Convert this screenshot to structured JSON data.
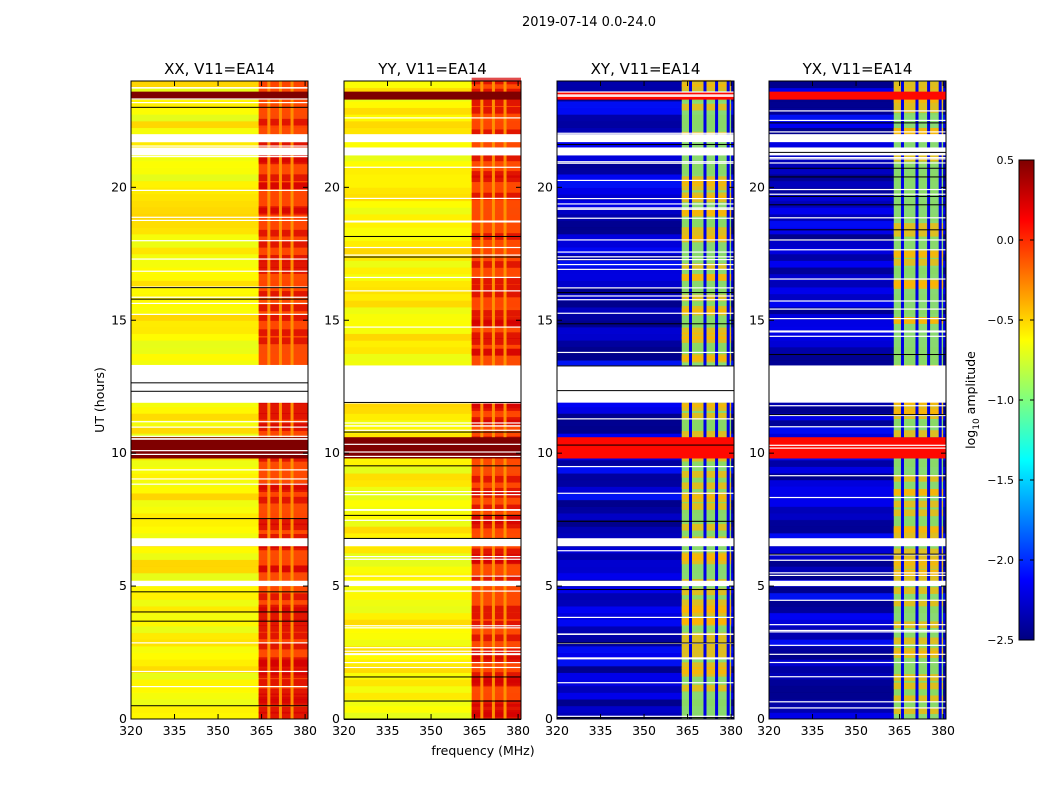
{
  "figure": {
    "suptitle": "2019-07-14 0.0-24.0"
  },
  "chart_data": {
    "type": "heatmap",
    "xlabel": "frequency (MHz)",
    "ylabel": "UT (hours)",
    "xlim": [
      320,
      381
    ],
    "ylim": [
      0,
      24
    ],
    "xticks": [
      320,
      335,
      350,
      365,
      380
    ],
    "xtick_labels": [
      "320",
      "335",
      "350",
      "365",
      "380"
    ],
    "yticks": [
      0,
      5,
      10,
      15,
      20
    ],
    "yticks_labels": [
      "0",
      "5",
      "10",
      "15",
      "20"
    ],
    "colorbar": {
      "label_main": "log",
      "label_sub": "10",
      "label_rest": " amplitude",
      "range": [
        -2.5,
        0.5
      ],
      "ticks": [
        0.5,
        0.0,
        -0.5,
        -1.0,
        -1.5,
        -2.0,
        -2.5
      ],
      "tick_labels": [
        "0.5",
        "0.0",
        "−0.5",
        "−1.0",
        "−1.5",
        "−2.0",
        "−2.5"
      ],
      "colormap": [
        "#00007f",
        "#0000ff",
        "#007fff",
        "#00ffff",
        "#7fff7f",
        "#ffff00",
        "#ff7f00",
        "#ff0000",
        "#7f0000"
      ]
    },
    "panels": [
      {
        "title": "XX, V11=EA14",
        "correlation": "parallel",
        "rfi_band_mhz": [
          364,
          381
        ],
        "rfi_columns_mhz": [
          367.5,
          371.5,
          375.5
        ],
        "strong_rfi_hours": [
          [
            9.8,
            10.6
          ],
          [
            23.3,
            23.6
          ]
        ],
        "approx_background_log10_amp": -0.6
      },
      {
        "title": "YY, V11=EA14",
        "correlation": "parallel",
        "rfi_band_mhz": [
          364,
          381
        ],
        "rfi_columns_mhz": [
          367.5,
          371.5,
          375.5
        ],
        "strong_rfi_hours": [
          [
            9.8,
            10.6
          ],
          [
            23.3,
            23.6
          ]
        ],
        "approx_background_log10_amp": -0.6
      },
      {
        "title": "XY, V11=EA14",
        "correlation": "cross",
        "rfi_band_mhz": [
          363,
          380
        ],
        "rfi_columns_mhz": [
          366,
          371,
          375,
          379
        ],
        "strong_rfi_hours": [
          [
            9.8,
            10.6
          ],
          [
            23.3,
            23.6
          ]
        ],
        "approx_background_log10_amp": -2.3
      },
      {
        "title": "YX, V11=EA14",
        "correlation": "cross",
        "rfi_band_mhz": [
          363,
          380
        ],
        "rfi_columns_mhz": [
          366,
          371,
          375,
          379
        ],
        "strong_rfi_hours": [
          [
            9.8,
            10.6
          ],
          [
            23.3,
            23.6
          ]
        ],
        "approx_background_log10_amp": -2.3
      }
    ],
    "flagged_hours": [
      [
        11.9,
        13.3
      ],
      [
        6.5,
        6.8
      ],
      [
        5.0,
        5.2
      ],
      [
        21.2,
        21.5
      ],
      [
        21.7,
        22.0
      ]
    ]
  }
}
